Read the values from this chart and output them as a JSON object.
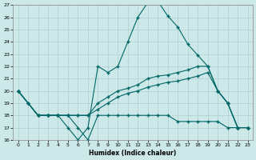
{
  "xlabel": "Humidex (Indice chaleur)",
  "xlim": [
    -0.5,
    23.5
  ],
  "ylim": [
    16,
    27
  ],
  "yticks": [
    16,
    17,
    18,
    19,
    20,
    21,
    22,
    23,
    24,
    25,
    26,
    27
  ],
  "xticks": [
    0,
    1,
    2,
    3,
    4,
    5,
    6,
    7,
    8,
    9,
    10,
    11,
    12,
    13,
    14,
    15,
    16,
    17,
    18,
    19,
    20,
    21,
    22,
    23
  ],
  "bg_color": "#cce8e8",
  "grid_color_major": "#aac8c8",
  "grid_color_minor": "#bbdada",
  "line_color": "#006666",
  "line_width": 0.8,
  "marker": "+",
  "marker_size": 3,
  "line1_x": [
    0,
    1,
    2,
    3,
    4,
    5,
    6,
    7,
    8,
    9,
    10,
    11,
    12,
    13,
    14,
    15,
    16,
    17,
    18,
    19,
    20,
    21,
    22,
    23
  ],
  "line1_y": [
    20,
    19,
    18,
    18,
    18,
    17,
    16,
    17,
    22,
    21.5,
    22,
    24,
    26,
    27.2,
    27.3,
    26.1,
    25.2,
    23.8,
    22.9,
    22,
    20,
    19,
    17,
    17
  ],
  "line2_x": [
    0,
    1,
    2,
    3,
    4,
    5,
    6,
    7,
    8,
    9,
    10,
    11,
    12,
    13,
    14,
    15,
    16,
    17,
    18,
    19,
    20,
    21,
    22,
    23
  ],
  "line2_y": [
    20,
    19,
    18,
    18,
    18,
    18,
    18,
    18,
    19,
    19.5,
    20,
    20.2,
    20.5,
    21,
    21.2,
    21.3,
    21.5,
    21.7,
    22,
    22,
    20,
    19,
    17,
    17
  ],
  "line3_x": [
    0,
    1,
    2,
    3,
    4,
    5,
    6,
    7,
    8,
    9,
    10,
    11,
    12,
    13,
    14,
    15,
    16,
    17,
    18,
    19,
    20,
    21,
    22,
    23
  ],
  "line3_y": [
    20,
    19,
    18,
    18,
    18,
    18,
    17,
    16,
    18,
    18,
    18,
    18,
    18,
    18,
    18,
    18,
    17.5,
    17.5,
    17.5,
    17.5,
    17.5,
    17,
    17,
    17
  ],
  "line4_x": [
    0,
    2,
    3,
    4,
    5,
    6,
    7,
    8,
    9,
    10,
    11,
    12,
    13,
    14,
    15,
    16,
    17,
    18,
    19,
    20,
    21,
    22,
    23
  ],
  "line4_y": [
    20,
    18,
    18,
    18,
    18,
    18,
    18,
    18.5,
    19,
    19.5,
    19.8,
    20,
    20.3,
    20.5,
    20.7,
    20.8,
    21,
    21.2,
    21.5,
    20,
    19,
    17,
    17
  ]
}
